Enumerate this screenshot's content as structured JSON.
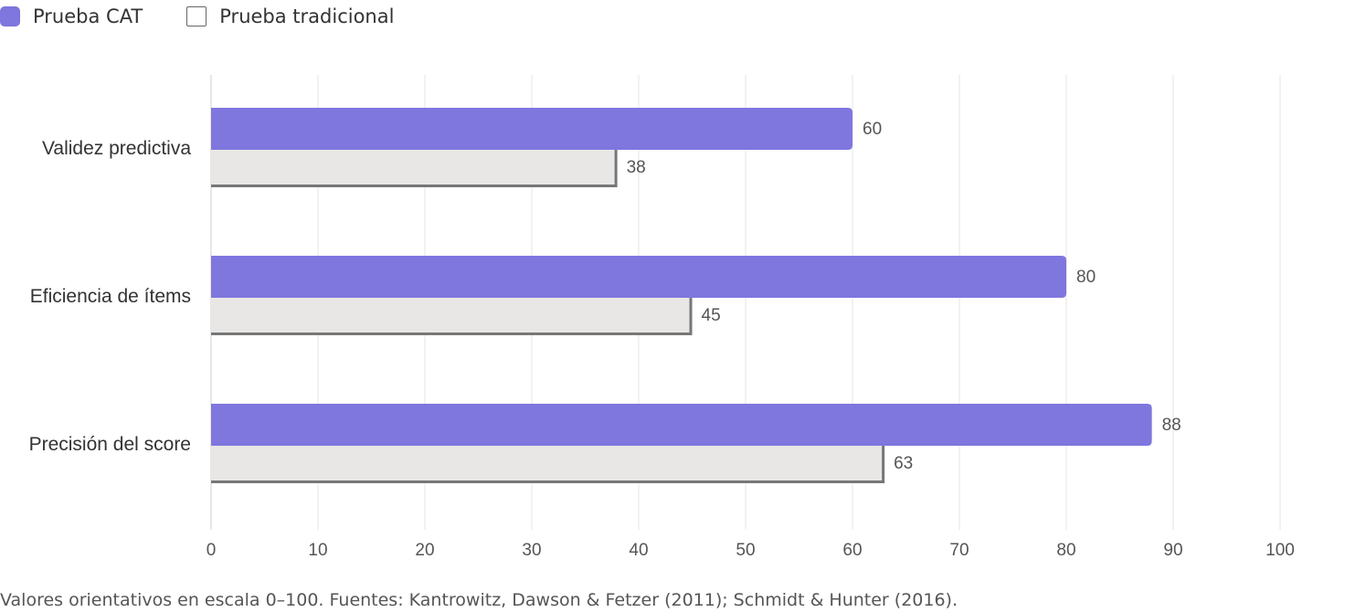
{
  "legend": {
    "series_a": "Prueba CAT",
    "series_b": "Prueba tradicional"
  },
  "chart_data": {
    "type": "bar",
    "orientation": "horizontal",
    "categories": [
      "Validez predictiva",
      "Eficiencia de ítems",
      "Precisión del score"
    ],
    "series": [
      {
        "name": "Prueba CAT",
        "values": [
          60,
          80,
          88
        ],
        "color": "#7f76de"
      },
      {
        "name": "Prueba tradicional",
        "values": [
          38,
          45,
          63
        ],
        "color": "#e8e7e5"
      }
    ],
    "xlim": [
      0,
      100
    ],
    "xticks": [
      0,
      10,
      20,
      30,
      40,
      50,
      60,
      70,
      80,
      90,
      100
    ],
    "grid": true,
    "legend_position": "top-left",
    "title": "",
    "xlabel": "",
    "ylabel": ""
  },
  "caption": "Valores orientativos en escala 0–100. Fuentes: Kantrowitz, Dawson & Fetzer (2011); Schmidt & Hunter (2016)."
}
